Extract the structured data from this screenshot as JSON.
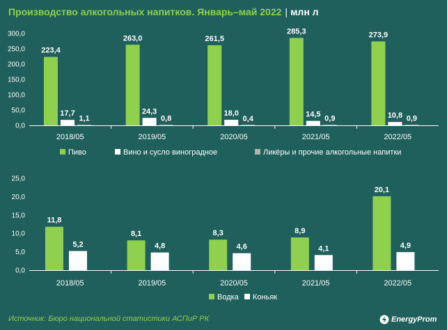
{
  "title": {
    "main": "Производство алкогольных напитков. Январь–май 2022",
    "separator": "|",
    "unit": "млн л"
  },
  "source": "Источник: Бюро национальной статистики АСПиР РК",
  "logo": {
    "text": "EnergyProm",
    "icon": "bolt-logo-icon"
  },
  "colors": {
    "background": "#1f5f5c",
    "green": "#8fd14f",
    "white": "#ffffff",
    "gray": "#b3b3b3",
    "axis": "#ffffff"
  },
  "chart_data": [
    {
      "type": "bar",
      "categories": [
        "2018/05",
        "2019/05",
        "2020/05",
        "2021/05",
        "2022/05"
      ],
      "ylim": [
        0,
        300
      ],
      "yticks": [
        "0,0",
        "50,0",
        "100,0",
        "150,0",
        "200,0",
        "250,0",
        "300,0"
      ],
      "grid": false,
      "legend_position": "bottom",
      "series": [
        {
          "name": "Пиво",
          "values": [
            223.4,
            263.0,
            261.5,
            285.3,
            273.9
          ],
          "labels": [
            "223,4",
            "263,0",
            "261,5",
            "285,3",
            "273,9"
          ],
          "color": "#8fd14f"
        },
        {
          "name": "Вино и сусло виноградное",
          "values": [
            17.7,
            24.3,
            18.0,
            14.5,
            10.8
          ],
          "labels": [
            "17,7",
            "24,3",
            "18,0",
            "14,5",
            "10,8"
          ],
          "color": "#ffffff"
        },
        {
          "name": "Ликёры и прочие алкогольные напитки",
          "values": [
            1.1,
            0.8,
            0.4,
            0.9,
            0.9
          ],
          "labels": [
            "1,1",
            "0,8",
            "0,4",
            "0,9",
            "0,9"
          ],
          "color": "#b3b3b3"
        }
      ]
    },
    {
      "type": "bar",
      "categories": [
        "2018/05",
        "2019/05",
        "2020/05",
        "2021/05",
        "2022/05"
      ],
      "ylim": [
        0,
        25
      ],
      "yticks": [
        "0,0",
        "5,0",
        "10,0",
        "15,0",
        "20,0",
        "25,0"
      ],
      "grid": false,
      "legend_position": "bottom",
      "series": [
        {
          "name": "Водка",
          "values": [
            11.8,
            8.1,
            8.3,
            8.9,
            20.1
          ],
          "labels": [
            "11,8",
            "8,1",
            "8,3",
            "8,9",
            "20,1"
          ],
          "color": "#8fd14f"
        },
        {
          "name": "Коньяк",
          "values": [
            5.2,
            4.8,
            4.6,
            4.1,
            4.9
          ],
          "labels": [
            "5,2",
            "4,8",
            "4,6",
            "4,1",
            "4,9"
          ],
          "color": "#ffffff"
        }
      ]
    }
  ]
}
